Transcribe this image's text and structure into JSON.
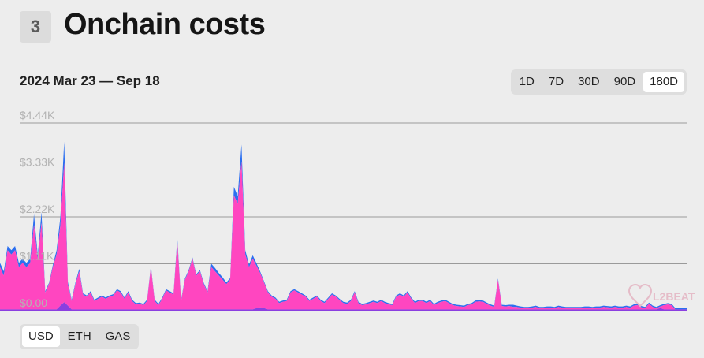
{
  "header": {
    "section_number": "3",
    "title": "Onchain costs"
  },
  "date_range": "2024 Mar 23 — Sep 18",
  "range_options": [
    "1D",
    "7D",
    "30D",
    "90D",
    "180D"
  ],
  "range_selected": "180D",
  "unit_options": [
    "USD",
    "ETH",
    "GAS"
  ],
  "unit_selected": "USD",
  "watermark": "L2BEAT",
  "colors": {
    "background": "#ededed",
    "series_main": "#ff46c0",
    "series_top": "#2b6ff0",
    "series_base": "#8b3fe0"
  },
  "chart_data": {
    "type": "area",
    "stacked": true,
    "x_start": "2024-03-23",
    "x_end": "2024-09-18",
    "ylim": [
      0,
      4440
    ],
    "y_ticks": [
      "$0.00",
      "$1.11K",
      "$2.22K",
      "$3.33K",
      "$4.44K"
    ],
    "y_tick_values": [
      0,
      1110,
      2220,
      3330,
      4440
    ],
    "grid": true,
    "legend": "none",
    "series": [
      {
        "color": "#8b3fe0",
        "values": [
          30,
          30,
          30,
          30,
          30,
          30,
          30,
          30,
          30,
          30,
          30,
          30,
          30,
          30,
          30,
          30,
          120,
          200,
          120,
          30,
          30,
          30,
          30,
          30,
          30,
          30,
          30,
          30,
          30,
          30,
          30,
          30,
          30,
          30,
          30,
          30,
          30,
          30,
          30,
          30,
          30,
          30,
          30,
          30,
          30,
          30,
          30,
          30,
          30,
          30,
          30,
          30,
          30,
          30,
          30,
          30,
          30,
          30,
          30,
          30,
          30,
          30,
          30,
          30,
          30,
          30,
          30,
          30,
          60,
          80,
          60,
          30,
          30,
          30,
          30,
          30,
          30,
          30,
          30,
          30,
          30,
          30,
          30,
          30,
          30,
          30,
          30,
          30,
          30,
          30,
          30,
          30,
          30,
          30,
          30,
          30,
          30,
          30,
          30,
          30,
          30,
          30,
          30,
          30,
          30,
          30,
          30,
          30,
          30,
          30,
          30,
          30,
          30,
          30,
          30,
          30,
          30,
          30,
          30,
          30,
          30,
          30,
          30,
          30,
          30,
          30,
          30,
          30,
          30,
          30,
          30,
          30,
          30,
          30,
          30,
          30,
          30,
          30,
          30,
          30,
          30,
          30,
          30,
          30,
          30,
          30,
          30,
          30,
          30,
          30,
          30,
          30,
          30,
          30,
          30,
          30,
          30,
          30,
          30,
          30,
          30,
          30,
          30,
          30,
          30,
          30,
          30,
          30,
          30,
          30,
          30,
          30,
          30,
          30,
          30,
          60,
          30,
          30,
          30,
          30,
          30,
          30,
          30
        ]
      },
      {
        "color": "#ff46c0",
        "values": [
          1000,
          800,
          1400,
          1300,
          1400,
          1000,
          1100,
          1000,
          1100,
          2000,
          1200,
          2050,
          400,
          600,
          1000,
          1300,
          1900,
          3300,
          500,
          200,
          600,
          900,
          350,
          300,
          400,
          200,
          250,
          300,
          250,
          300,
          330,
          450,
          400,
          250,
          400,
          200,
          120,
          130,
          100,
          200,
          1000,
          200,
          100,
          250,
          450,
          400,
          350,
          1600,
          200,
          700,
          900,
          1200,
          800,
          900,
          600,
          400,
          1000,
          900,
          800,
          700,
          600,
          700,
          2700,
          2500,
          3500,
          1300,
          1000,
          1200,
          1000,
          800,
          600,
          400,
          300,
          250,
          150,
          180,
          200,
          400,
          450,
          400,
          350,
          300,
          200,
          250,
          300,
          200,
          150,
          250,
          350,
          300,
          220,
          150,
          130,
          200,
          400,
          150,
          100,
          120,
          150,
          180,
          150,
          200,
          150,
          120,
          100,
          300,
          350,
          300,
          400,
          250,
          150,
          200,
          200,
          150,
          200,
          100,
          150,
          180,
          200,
          150,
          100,
          80,
          70,
          60,
          100,
          120,
          180,
          190,
          180,
          130,
          90,
          60,
          700,
          80,
          70,
          80,
          60,
          60,
          40,
          30,
          30,
          40,
          60,
          30,
          30,
          40,
          40,
          30,
          60,
          40,
          30,
          30,
          30,
          30,
          30,
          40,
          40,
          30,
          40,
          40,
          60,
          50,
          40,
          60,
          40,
          40,
          60,
          40,
          90,
          100,
          50,
          30,
          130,
          60,
          30,
          40,
          100,
          120,
          100
        ]
      },
      {
        "color": "#2b6ff0",
        "values": [
          100,
          100,
          100,
          100,
          100,
          100,
          100,
          100,
          100,
          250,
          80,
          250,
          30,
          30,
          50,
          100,
          200,
          500,
          60,
          30,
          40,
          60,
          30,
          30,
          30,
          30,
          30,
          30,
          30,
          30,
          30,
          30,
          30,
          30,
          30,
          30,
          30,
          30,
          30,
          30,
          30,
          30,
          30,
          30,
          30,
          30,
          30,
          80,
          30,
          30,
          30,
          30,
          30,
          30,
          30,
          30,
          80,
          80,
          60,
          60,
          40,
          40,
          200,
          180,
          400,
          100,
          60,
          80,
          60,
          40,
          30,
          30,
          30,
          30,
          30,
          30,
          30,
          30,
          30,
          30,
          30,
          30,
          30,
          30,
          30,
          30,
          30,
          30,
          30,
          30,
          30,
          30,
          30,
          30,
          30,
          30,
          30,
          30,
          30,
          30,
          30,
          30,
          30,
          30,
          30,
          30,
          30,
          30,
          30,
          30,
          30,
          30,
          30,
          30,
          30,
          30,
          30,
          30,
          30,
          30,
          30,
          30,
          30,
          30,
          30,
          30,
          30,
          30,
          30,
          30,
          30,
          30,
          30,
          30,
          30,
          30,
          50,
          30,
          30,
          30,
          30,
          30,
          30,
          30,
          30,
          30,
          30,
          30,
          30,
          30,
          30,
          30,
          30,
          30,
          30,
          30,
          30,
          30,
          30,
          30,
          30,
          30,
          30,
          30,
          30,
          30,
          30,
          30,
          30,
          30,
          30,
          30,
          30,
          30,
          30,
          30,
          30,
          30,
          30,
          30,
          30,
          30,
          30
        ]
      }
    ]
  }
}
